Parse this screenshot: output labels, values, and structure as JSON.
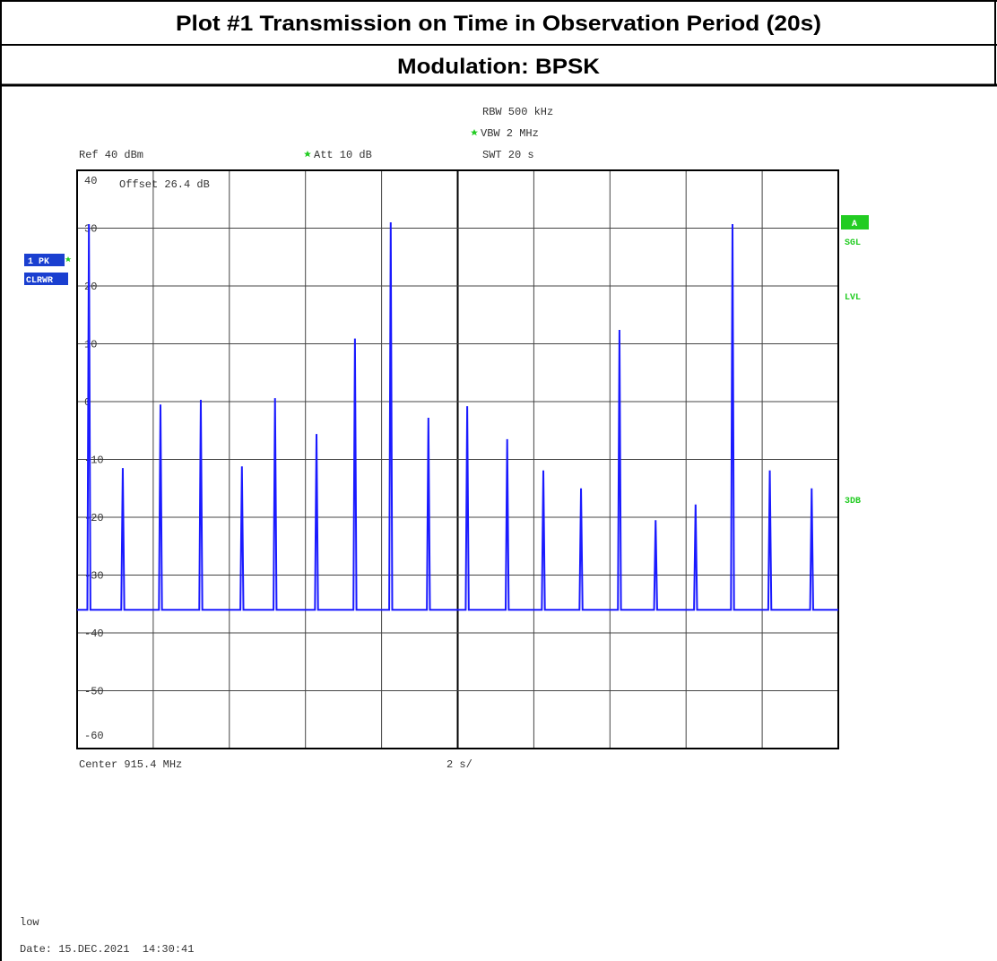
{
  "header": {
    "title": "Plot #1 Transmission on Time in Observation Period (20s)",
    "subtitle": "Modulation: BPSK"
  },
  "settings": {
    "rbw": "RBW 500 kHz",
    "vbw": "VBW 2 MHz",
    "ref": "Ref 40 dBm",
    "att": "Att 10 dB",
    "swt": "SWT 20 s",
    "offset": "Offset 26.4 dB"
  },
  "trace": {
    "mode": "1 PK",
    "clear": "CLRWR"
  },
  "side": {
    "a": "A",
    "sgl": "SGL",
    "lvl": "LVL",
    "db3": "3DB"
  },
  "chart_data": {
    "type": "line",
    "x": [
      0,
      0.27,
      0.31,
      0.35,
      1.16,
      1.2,
      1.24,
      2.15,
      2.19,
      2.23,
      3.21,
      3.25,
      3.29,
      4.29,
      4.33,
      4.37,
      5.16,
      5.2,
      5.24,
      6.25,
      6.29,
      6.33,
      7.26,
      7.3,
      7.34,
      8.2,
      8.24,
      8.28,
      9.19,
      9.23,
      9.27,
      10.21,
      10.25,
      10.29,
      11.26,
      11.3,
      11.34,
      12.21,
      12.25,
      12.29,
      13.2,
      13.24,
      13.28,
      14.21,
      14.25,
      14.29,
      15.16,
      15.2,
      15.24,
      16.21,
      16.25,
      16.29,
      17.18,
      17.22,
      17.26,
      18.16,
      18.2,
      18.24,
      19.26,
      19.3,
      19.34,
      20
    ],
    "series": [
      {
        "color": "#1a1aff",
        "values": [
          -36,
          -36,
          30.7,
          -36,
          -36,
          -11.5,
          -36,
          -36,
          -0.5,
          -36,
          -36,
          0.3,
          -36,
          -36,
          -11.2,
          -36,
          -36,
          0.6,
          -36,
          -36,
          -5.6,
          -36,
          -36,
          10.9,
          -36,
          -36,
          31,
          -36,
          -36,
          -2.8,
          -36,
          -36,
          -0.8,
          -36,
          -36,
          -6.5,
          -36,
          -36,
          -11.9,
          -36,
          -36,
          -15,
          -36,
          -36,
          12.4,
          -36,
          -36,
          -20.5,
          -36,
          -36,
          -17.8,
          -36,
          -36,
          30.7,
          -36,
          -36,
          -11.9,
          -36,
          -36,
          -15,
          -36,
          -36
        ]
      }
    ],
    "xlim": [
      0,
      20
    ],
    "xticks": [
      0,
      2,
      4,
      6,
      8,
      10,
      12,
      14,
      16,
      18,
      20
    ],
    "ylim": [
      -60,
      40
    ],
    "yticks": [
      40,
      30,
      20,
      10,
      0,
      -10,
      -20,
      -30,
      -40,
      -50,
      -60
    ],
    "grid": true,
    "xlabel": "Center 915.4 MHz",
    "xscale": "2 s/"
  },
  "footer": {
    "note": "low",
    "date": "Date: 15.DEC.2021  14:30:41"
  }
}
